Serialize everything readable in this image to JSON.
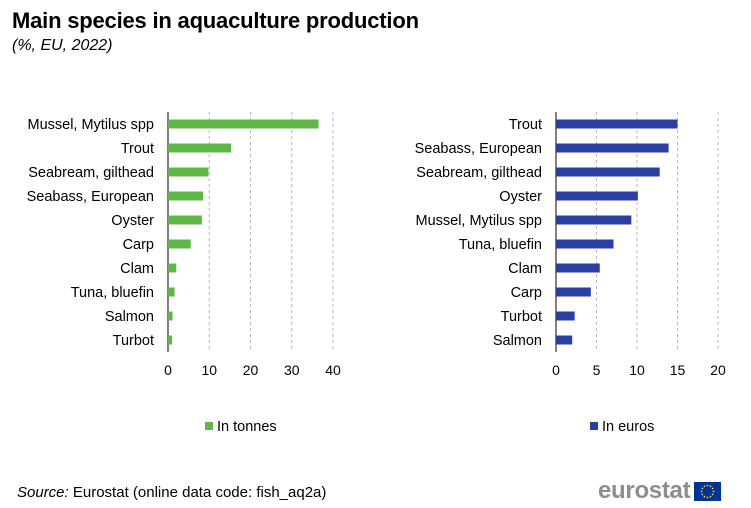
{
  "title": "Main species in aquaculture production",
  "subtitle": "(%, EU, 2022)",
  "source_label": "Source:",
  "source_text": " Eurostat (online data code: fish_aq2a)",
  "logo_text": "eurostat",
  "chart_data": [
    {
      "type": "bar",
      "orientation": "horizontal",
      "categories": [
        "Mussel, Mytilus spp",
        "Trout",
        "Seabream, gilthead",
        "Seabass, European",
        "Oyster",
        "Carp",
        "Clam",
        "Tuna, bluefin",
        "Salmon",
        "Turbot"
      ],
      "series": [
        {
          "name": "In tonnes",
          "values": [
            36.5,
            15.3,
            9.8,
            8.5,
            8.2,
            5.5,
            2.0,
            1.6,
            1.1,
            1.0
          ]
        }
      ],
      "xlim": [
        0,
        40
      ],
      "xticks": [
        0,
        10,
        20,
        30,
        40
      ],
      "color": "#5fb646",
      "grid": "vertical dashed",
      "legend": "bottom"
    },
    {
      "type": "bar",
      "orientation": "horizontal",
      "categories": [
        "Trout",
        "Seabass, European",
        "Seabream, gilthead",
        "Oyster",
        "Mussel, Mytilus spp",
        "Tuna, bluefin",
        "Clam",
        "Carp",
        "Turbot",
        "Salmon"
      ],
      "series": [
        {
          "name": "In euros",
          "values": [
            15.0,
            13.9,
            12.8,
            10.1,
            9.3,
            7.1,
            5.4,
            4.3,
            2.3,
            2.0
          ]
        }
      ],
      "xlim": [
        0,
        20
      ],
      "xticks": [
        0,
        5,
        10,
        15,
        20
      ],
      "color": "#2b3fa3",
      "grid": "vertical dashed",
      "legend": "bottom"
    }
  ]
}
